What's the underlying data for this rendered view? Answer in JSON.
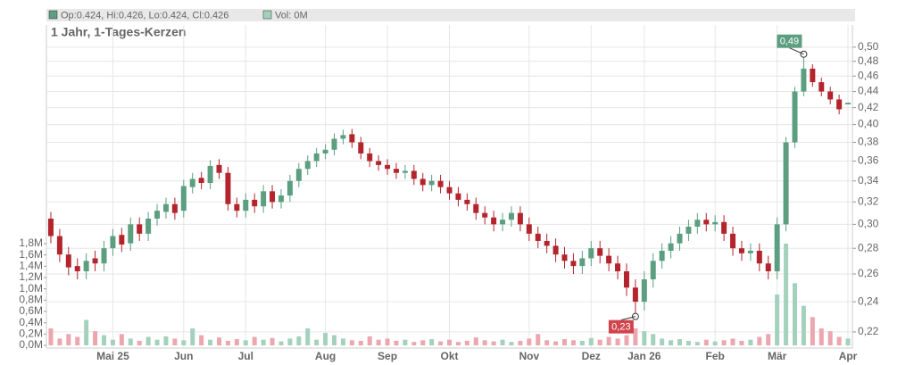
{
  "chart_data": {
    "type": "candlestick",
    "header": {
      "ohlc": "Op:0.424, Hi:0.426, Lo:0.424, Cl:0.426",
      "volume": "Vol: 0M"
    },
    "title": "1 Jahr, 1-Tages-Kerzen",
    "log_scale": true,
    "grid": true,
    "up_color": "#5b9e80",
    "down_color": "#b3242c",
    "volume_up_color": "#a3d1bc",
    "volume_down_color": "#eba6ae",
    "categories": [
      null,
      null,
      null,
      null,
      null,
      null,
      null,
      "Mai 25",
      null,
      null,
      null,
      null,
      null,
      null,
      null,
      "Jun",
      null,
      null,
      null,
      null,
      null,
      null,
      "Jul",
      null,
      null,
      null,
      null,
      null,
      null,
      null,
      null,
      "Aug",
      null,
      null,
      null,
      null,
      null,
      null,
      "Sep",
      null,
      null,
      null,
      null,
      null,
      null,
      "Okt",
      null,
      null,
      null,
      null,
      null,
      null,
      null,
      null,
      "Nov",
      null,
      null,
      null,
      null,
      null,
      null,
      "Dez",
      null,
      null,
      null,
      null,
      null,
      "Jan 26",
      null,
      null,
      null,
      null,
      null,
      null,
      null,
      "Feb",
      null,
      null,
      null,
      null,
      null,
      null,
      "Mär",
      null,
      null,
      null,
      null,
      null,
      null,
      null,
      "Apr"
    ],
    "open": [
      0.305,
      0.29,
      0.275,
      0.266,
      0.262,
      0.272,
      0.268,
      0.28,
      0.291,
      0.284,
      0.3,
      0.292,
      0.305,
      0.311,
      0.318,
      0.312,
      0.334,
      0.343,
      0.338,
      0.356,
      0.348,
      0.318,
      0.312,
      0.322,
      0.316,
      0.33,
      0.32,
      0.326,
      0.34,
      0.352,
      0.36,
      0.368,
      0.372,
      0.384,
      0.389,
      0.38,
      0.368,
      0.36,
      0.356,
      0.352,
      0.348,
      0.35,
      0.342,
      0.336,
      0.34,
      0.334,
      0.328,
      0.322,
      0.318,
      0.31,
      0.306,
      0.3,
      0.304,
      0.31,
      0.3,
      0.292,
      0.286,
      0.282,
      0.275,
      0.27,
      0.266,
      0.272,
      0.28,
      0.274,
      0.268,
      0.262,
      0.25,
      0.24,
      0.256,
      0.27,
      0.278,
      0.284,
      0.292,
      0.298,
      0.304,
      0.3,
      0.302,
      0.292,
      0.28,
      0.276,
      0.278,
      0.268,
      0.262,
      0.3,
      0.38,
      0.44,
      0.47,
      0.452,
      0.44,
      0.43,
      0.424
    ],
    "high": [
      0.311,
      0.296,
      0.281,
      0.272,
      0.276,
      0.278,
      0.286,
      0.296,
      0.297,
      0.306,
      0.306,
      0.311,
      0.318,
      0.324,
      0.324,
      0.341,
      0.348,
      0.349,
      0.361,
      0.362,
      0.354,
      0.324,
      0.328,
      0.328,
      0.336,
      0.336,
      0.332,
      0.346,
      0.358,
      0.366,
      0.374,
      0.378,
      0.39,
      0.394,
      0.395,
      0.386,
      0.374,
      0.366,
      0.362,
      0.358,
      0.356,
      0.356,
      0.348,
      0.346,
      0.346,
      0.34,
      0.334,
      0.328,
      0.324,
      0.316,
      0.312,
      0.31,
      0.316,
      0.316,
      0.306,
      0.298,
      0.292,
      0.288,
      0.281,
      0.276,
      0.278,
      0.286,
      0.286,
      0.28,
      0.274,
      0.268,
      0.256,
      0.262,
      0.276,
      0.284,
      0.29,
      0.298,
      0.304,
      0.31,
      0.31,
      0.308,
      0.308,
      0.298,
      0.286,
      0.284,
      0.284,
      0.274,
      0.306,
      0.386,
      0.446,
      0.49,
      0.476,
      0.458,
      0.446,
      0.436,
      0.426
    ],
    "low": [
      0.284,
      0.269,
      0.259,
      0.256,
      0.256,
      0.262,
      0.262,
      0.274,
      0.277,
      0.278,
      0.286,
      0.286,
      0.299,
      0.305,
      0.304,
      0.306,
      0.328,
      0.332,
      0.332,
      0.342,
      0.312,
      0.306,
      0.306,
      0.31,
      0.31,
      0.314,
      0.314,
      0.32,
      0.334,
      0.346,
      0.354,
      0.362,
      0.366,
      0.378,
      0.374,
      0.362,
      0.354,
      0.35,
      0.346,
      0.342,
      0.342,
      0.336,
      0.33,
      0.33,
      0.328,
      0.322,
      0.316,
      0.312,
      0.304,
      0.3,
      0.294,
      0.294,
      0.298,
      0.294,
      0.286,
      0.28,
      0.276,
      0.269,
      0.264,
      0.26,
      0.26,
      0.266,
      0.268,
      0.262,
      0.256,
      0.244,
      0.23,
      0.234,
      0.25,
      0.264,
      0.272,
      0.278,
      0.286,
      0.292,
      0.294,
      0.294,
      0.286,
      0.274,
      0.27,
      0.27,
      0.262,
      0.256,
      0.256,
      0.294,
      0.374,
      0.434,
      0.446,
      0.434,
      0.424,
      0.412,
      0.424
    ],
    "close": [
      0.29,
      0.275,
      0.265,
      0.262,
      0.27,
      0.268,
      0.28,
      0.29,
      0.283,
      0.3,
      0.292,
      0.305,
      0.312,
      0.318,
      0.31,
      0.335,
      0.342,
      0.338,
      0.355,
      0.348,
      0.318,
      0.312,
      0.322,
      0.316,
      0.33,
      0.32,
      0.326,
      0.34,
      0.352,
      0.36,
      0.368,
      0.372,
      0.384,
      0.388,
      0.38,
      0.368,
      0.36,
      0.356,
      0.352,
      0.348,
      0.35,
      0.342,
      0.336,
      0.34,
      0.334,
      0.328,
      0.322,
      0.318,
      0.31,
      0.306,
      0.3,
      0.304,
      0.31,
      0.3,
      0.292,
      0.286,
      0.282,
      0.275,
      0.27,
      0.266,
      0.272,
      0.28,
      0.274,
      0.268,
      0.262,
      0.25,
      0.24,
      0.256,
      0.27,
      0.278,
      0.284,
      0.292,
      0.298,
      0.304,
      0.3,
      0.302,
      0.292,
      0.28,
      0.276,
      0.278,
      0.268,
      0.262,
      0.3,
      0.38,
      0.44,
      0.47,
      0.452,
      0.44,
      0.43,
      0.418,
      0.426
    ],
    "ylim": [
      0.21,
      0.533
    ],
    "yticks": [
      {
        "value": 0.22,
        "label": "0,22"
      },
      {
        "value": 0.24,
        "label": "0,24"
      },
      {
        "value": 0.26,
        "label": "0,26"
      },
      {
        "value": 0.28,
        "label": "0,28"
      },
      {
        "value": 0.3,
        "label": "0,30"
      },
      {
        "value": 0.32,
        "label": "0,32"
      },
      {
        "value": 0.34,
        "label": "0,34"
      },
      {
        "value": 0.36,
        "label": "0,36"
      },
      {
        "value": 0.38,
        "label": "0,38"
      },
      {
        "value": 0.4,
        "label": "0,40"
      },
      {
        "value": 0.42,
        "label": "0,42"
      },
      {
        "value": 0.44,
        "label": "0,44"
      },
      {
        "value": 0.46,
        "label": "0,46"
      },
      {
        "value": 0.48,
        "label": "0,48"
      },
      {
        "value": 0.5,
        "label": "0,50"
      }
    ],
    "annotations": [
      {
        "value": 0.49,
        "label": "0,49",
        "color": "#5b9e80"
      },
      {
        "value": 0.23,
        "label": "0,23",
        "color": "#d0454c"
      }
    ],
    "volume": {
      "values": [
        300000,
        120000,
        200000,
        150000,
        450000,
        250000,
        180000,
        100000,
        200000,
        120000,
        80000,
        150000,
        100000,
        160000,
        120000,
        90000,
        300000,
        180000,
        100000,
        140000,
        80000,
        110000,
        90000,
        150000,
        100000,
        130000,
        70000,
        120000,
        160000,
        300000,
        100000,
        220000,
        180000,
        120000,
        90000,
        80000,
        160000,
        100000,
        120000,
        80000,
        100000,
        60000,
        90000,
        110000,
        70000,
        100000,
        60000,
        80000,
        140000,
        90000,
        70000,
        100000,
        60000,
        80000,
        120000,
        200000,
        90000,
        70000,
        110000,
        90000,
        80000,
        130000,
        100000,
        150000,
        120000,
        180000,
        300000,
        250000,
        200000,
        120000,
        90000,
        110000,
        80000,
        60000,
        100000,
        70000,
        90000,
        120000,
        80000,
        100000,
        150000,
        200000,
        900000,
        1800000,
        1100000,
        700000,
        500000,
        300000,
        250000,
        150000,
        120000
      ],
      "ylim": [
        0,
        1800000
      ],
      "yticks": [
        {
          "value": 0,
          "label": "0,0M"
        },
        {
          "value": 200000,
          "label": "0,2M"
        },
        {
          "value": 400000,
          "label": "0,4M"
        },
        {
          "value": 600000,
          "label": "0,6M"
        },
        {
          "value": 800000,
          "label": "0,8M"
        },
        {
          "value": 1000000,
          "label": "1,0M"
        },
        {
          "value": 1200000,
          "label": "1,2M"
        },
        {
          "value": 1400000,
          "label": "1,4M"
        },
        {
          "value": 1600000,
          "label": "1,6M"
        },
        {
          "value": 1800000,
          "label": "1,8M"
        }
      ]
    }
  }
}
